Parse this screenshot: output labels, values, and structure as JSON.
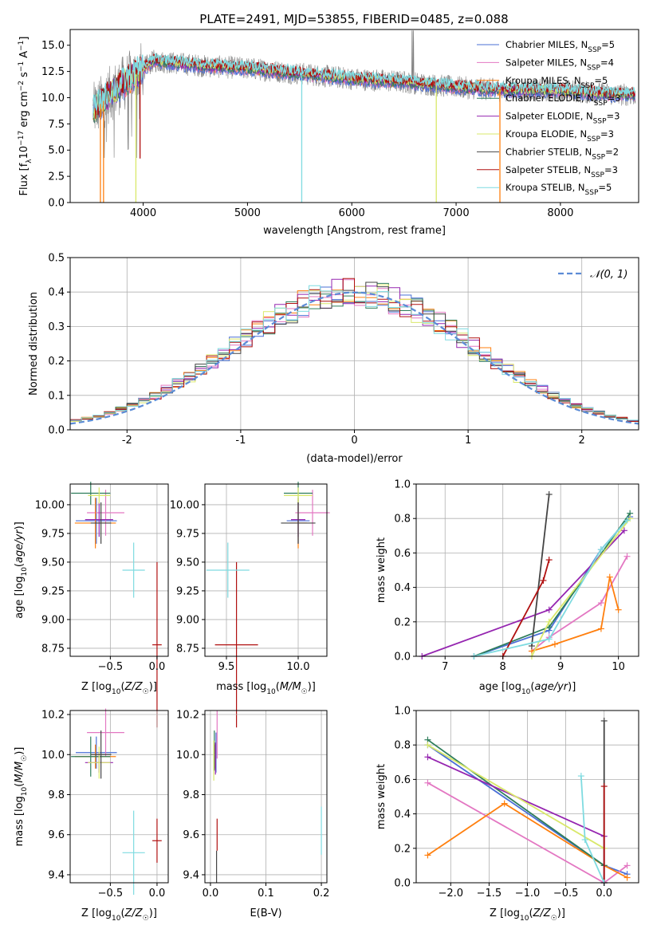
{
  "figure_title": "PLATE=2491, MJD=53855, FIBERID=0485, z=0.088",
  "legend_labels": [
    {
      "text": "Chabrier MILES, N",
      "sub": "SSP",
      "tail": "=5"
    },
    {
      "text": "Salpeter MILES, N",
      "sub": "SSP",
      "tail": "=4"
    },
    {
      "text": "Kroupa MILES, N",
      "sub": "SSP",
      "tail": "=5"
    },
    {
      "text": "Chabrier ELODIE, N",
      "sub": "SSP",
      "tail": "=3"
    },
    {
      "text": "Salpeter ELODIE, N",
      "sub": "SSP",
      "tail": "=3"
    },
    {
      "text": "Kroupa ELODIE, N",
      "sub": "SSP",
      "tail": "=3"
    },
    {
      "text": "Chabrier STELIB, N",
      "sub": "SSP",
      "tail": "=2"
    },
    {
      "text": "Salpeter STELIB, N",
      "sub": "SSP",
      "tail": "=3"
    },
    {
      "text": "Kroupa STELIB, N",
      "sub": "SSP",
      "tail": "=5"
    }
  ],
  "colors": [
    "#4a6fd6",
    "#e377c2",
    "#ff7f0e",
    "#2e7d5b",
    "#9525b0",
    "#d9e86a",
    "#444444",
    "#b01010",
    "#7fdbe0"
  ],
  "chart_data": [
    {
      "id": "spectrum",
      "type": "line",
      "title": "PLATE=2491, MJD=53855, FIBERID=0485, z=0.088",
      "xlabel": "wavelength [Angstrom, rest frame]",
      "ylabel": "Flux [fλ10⁻¹⁷ erg cm⁻² s⁻¹ A⁻¹]",
      "xlim": [
        3300,
        8750
      ],
      "ylim": [
        0,
        16.5
      ],
      "xticks": [
        4000,
        5000,
        6000,
        7000,
        8000
      ],
      "yticks": [
        0.0,
        2.5,
        5.0,
        7.5,
        10.0,
        12.5,
        15.0
      ],
      "ytick_labels": [
        "0.0",
        "2.5",
        "5.0",
        "7.5",
        "10.0",
        "12.5",
        "15.0"
      ],
      "model_continuum": {
        "x": [
          3500,
          3700,
          3900,
          4100,
          4300,
          4600,
          5000,
          5500,
          6000,
          6500,
          7000,
          7500,
          8000,
          8500
        ],
        "y": [
          8.5,
          10.5,
          12.0,
          13.5,
          13.3,
          13.0,
          12.8,
          12.3,
          11.8,
          11.5,
          11.0,
          10.7,
          10.7,
          10.3
        ]
      },
      "absorption_features": [
        {
          "x": 3590,
          "y": 0.0
        },
        {
          "x": 3620,
          "y": 0.0
        },
        {
          "x": 3930,
          "y": 0.0
        },
        {
          "x": 3970,
          "y": 4.2
        },
        {
          "x": 5520,
          "y": 0.0
        },
        {
          "x": 6810,
          "y": 0.0
        },
        {
          "x": 7420,
          "y": 0.0
        }
      ],
      "legend": "top-right",
      "grid": false
    },
    {
      "id": "residuals",
      "type": "histogram",
      "xlabel": "(data-model)/error",
      "ylabel": "Normed distribution",
      "xlim": [
        -2.5,
        2.5
      ],
      "ylim": [
        0,
        0.5
      ],
      "xticks": [
        -2,
        -1,
        0,
        1,
        2
      ],
      "yticks": [
        0.0,
        0.1,
        0.2,
        0.3,
        0.4,
        0.5
      ],
      "ytick_labels": [
        "0.0",
        "0.1",
        "0.2",
        "0.3",
        "0.4",
        "0.5"
      ],
      "bin_width": 0.1,
      "reference_label": "𝒩(0, 1)",
      "legend": "top-right",
      "grid": true
    },
    {
      "id": "age_vs_Z",
      "type": "errorbar",
      "xlabel": "Z [log10(Z/Z☉)]",
      "ylabel": "age [log10(age/yr)]",
      "xlim": [
        -0.93,
        0.12
      ],
      "ylim": [
        8.68,
        10.18
      ],
      "xticks": [
        -0.5,
        0.0
      ],
      "xtick_labels": [
        "−0.5",
        "0.0"
      ],
      "yticks": [
        8.75,
        9.0,
        9.25,
        9.5,
        9.75,
        10.0
      ],
      "ytick_labels": [
        "8.75",
        "9.00",
        "9.25",
        "9.50",
        "9.75",
        "10.00"
      ],
      "points": [
        {
          "c": 0,
          "x": -0.65,
          "y": 9.86,
          "xe": 0.22,
          "ye": 0.2
        },
        {
          "c": 1,
          "x": -0.55,
          "y": 9.93,
          "xe": 0.2,
          "ye": 0.2
        },
        {
          "c": 2,
          "x": -0.66,
          "y": 9.84,
          "xe": 0.22,
          "ye": 0.22
        },
        {
          "c": 3,
          "x": -0.71,
          "y": 10.1,
          "xe": 0.21,
          "ye": 0.1
        },
        {
          "c": 4,
          "x": -0.62,
          "y": 9.87,
          "xe": 0.15,
          "ye": 0.15
        },
        {
          "c": 5,
          "x": -0.62,
          "y": 10.08,
          "xe": 0.12,
          "ye": 0.07
        },
        {
          "c": 6,
          "x": -0.6,
          "y": 9.84,
          "xe": 0.11,
          "ye": 0.18
        },
        {
          "c": 7,
          "x": 0.0,
          "y": 8.78,
          "xe": 0.05,
          "ye": 0.72
        },
        {
          "c": 8,
          "x": -0.25,
          "y": 9.43,
          "xe": 0.12,
          "ye": 0.24
        }
      ],
      "grid": true
    },
    {
      "id": "age_vs_mass",
      "type": "errorbar",
      "xlabel": "mass [log10(M/M☉)]",
      "ylabel": "",
      "xlim": [
        9.35,
        10.2
      ],
      "ylim": [
        8.68,
        10.18
      ],
      "xticks": [
        9.5,
        10.0
      ],
      "xtick_labels": [
        "9.5",
        "10.0"
      ],
      "yticks": [
        8.75,
        9.0,
        9.25,
        9.5,
        9.75,
        10.0
      ],
      "ytick_labels": [
        "8.75",
        "9.00",
        "9.25",
        "9.50",
        "9.75",
        "10.00"
      ],
      "points": [
        {
          "c": 0,
          "x": 10.0,
          "y": 9.86,
          "xe": 0.08,
          "ye": 0.2
        },
        {
          "c": 1,
          "x": 10.1,
          "y": 9.93,
          "xe": 0.12,
          "ye": 0.2
        },
        {
          "c": 2,
          "x": 10.0,
          "y": 9.84,
          "xe": 0.06,
          "ye": 0.22
        },
        {
          "c": 3,
          "x": 10.0,
          "y": 10.1,
          "xe": 0.1,
          "ye": 0.1
        },
        {
          "c": 4,
          "x": 10.0,
          "y": 9.87,
          "xe": 0.05,
          "ye": 0.15
        },
        {
          "c": 5,
          "x": 10.0,
          "y": 10.08,
          "xe": 0.1,
          "ye": 0.07
        },
        {
          "c": 6,
          "x": 10.0,
          "y": 9.84,
          "xe": 0.12,
          "ye": 0.18
        },
        {
          "c": 7,
          "x": 9.57,
          "y": 8.78,
          "xe": 0.15,
          "ye": 0.72
        },
        {
          "c": 8,
          "x": 9.51,
          "y": 9.43,
          "xe": 0.15,
          "ye": 0.24
        }
      ],
      "grid": true
    },
    {
      "id": "mass_weight_vs_age",
      "type": "line",
      "xlabel": "age [log10(age/yr)]",
      "ylabel": "mass weight",
      "xlim": [
        6.5,
        10.35
      ],
      "ylim": [
        0,
        1.0
      ],
      "xticks": [
        7,
        8,
        9,
        10
      ],
      "yticks": [
        0.0,
        0.2,
        0.4,
        0.6,
        0.8,
        1.0
      ],
      "ytick_labels": [
        "0.0",
        "0.2",
        "0.4",
        "0.6",
        "0.8",
        "1.0"
      ],
      "series": [
        {
          "c": 0,
          "x": [
            7.5,
            8.8,
            9.7,
            10.2
          ],
          "y": [
            0.0,
            0.15,
            0.62,
            0.81
          ]
        },
        {
          "c": 1,
          "x": [
            8.5,
            8.8,
            9.7,
            10.15
          ],
          "y": [
            0.03,
            0.11,
            0.31,
            0.58
          ]
        },
        {
          "c": 2,
          "x": [
            8.5,
            8.9,
            9.7,
            9.85,
            10.0
          ],
          "y": [
            0.03,
            0.07,
            0.16,
            0.46,
            0.27
          ]
        },
        {
          "c": 3,
          "x": [
            7.5,
            8.8,
            10.2
          ],
          "y": [
            0.0,
            0.17,
            0.83
          ]
        },
        {
          "c": 4,
          "x": [
            6.6,
            8.8,
            10.1
          ],
          "y": [
            0.0,
            0.27,
            0.73
          ]
        },
        {
          "c": 5,
          "x": [
            8.5,
            8.8,
            10.2
          ],
          "y": [
            0.0,
            0.2,
            0.8
          ]
        },
        {
          "c": 6,
          "x": [
            8.5,
            8.8
          ],
          "y": [
            0.06,
            0.94
          ]
        },
        {
          "c": 7,
          "x": [
            8.0,
            8.7,
            8.8
          ],
          "y": [
            0.0,
            0.44,
            0.56
          ]
        },
        {
          "c": 8,
          "x": [
            7.5,
            8.8,
            9.7,
            10.15
          ],
          "y": [
            0.0,
            0.1,
            0.62,
            0.79
          ]
        }
      ],
      "grid": true
    },
    {
      "id": "mass_vs_Z",
      "type": "errorbar",
      "xlabel": "Z [log10(Z/Z☉)]",
      "ylabel": "mass [log10(M/M☉)]",
      "xlim": [
        -0.93,
        0.12
      ],
      "ylim": [
        9.36,
        10.22
      ],
      "xticks": [
        -0.5,
        0.0
      ],
      "xtick_labels": [
        "−0.5",
        "0.0"
      ],
      "yticks": [
        9.4,
        9.6,
        9.8,
        10.0,
        10.2
      ],
      "ytick_labels": [
        "9.4",
        "9.6",
        "9.8",
        "10.0",
        "10.2"
      ],
      "points": [
        {
          "c": 0,
          "x": -0.65,
          "y": 10.01,
          "xe": 0.22,
          "ye": 0.08
        },
        {
          "c": 1,
          "x": -0.55,
          "y": 10.11,
          "xe": 0.2,
          "ye": 0.12
        },
        {
          "c": 2,
          "x": -0.66,
          "y": 9.99,
          "xe": 0.22,
          "ye": 0.06
        },
        {
          "c": 3,
          "x": -0.71,
          "y": 9.99,
          "xe": 0.21,
          "ye": 0.1
        },
        {
          "c": 4,
          "x": -0.62,
          "y": 9.96,
          "xe": 0.15,
          "ye": 0.05
        },
        {
          "c": 5,
          "x": -0.62,
          "y": 9.96,
          "xe": 0.12,
          "ye": 0.08
        },
        {
          "c": 6,
          "x": -0.6,
          "y": 10.0,
          "xe": 0.11,
          "ye": 0.12
        },
        {
          "c": 7,
          "x": 0.0,
          "y": 9.57,
          "xe": 0.05,
          "ye": 0.11
        },
        {
          "c": 8,
          "x": -0.25,
          "y": 9.51,
          "xe": 0.12,
          "ye": 0.21
        }
      ],
      "grid": true
    },
    {
      "id": "mass_vs_EBV",
      "type": "errorbar",
      "xlabel": "E(B-V)",
      "ylabel": "",
      "xlim": [
        -0.01,
        0.21
      ],
      "ylim": [
        9.36,
        10.22
      ],
      "xticks": [
        0.0,
        0.1,
        0.2
      ],
      "xtick_labels": [
        "0.0",
        "0.1",
        "0.2"
      ],
      "yticks": [
        9.4,
        9.6,
        9.8,
        10.0,
        10.2
      ],
      "ytick_labels": [
        "9.4",
        "9.6",
        "9.8",
        "10.0",
        "10.2"
      ],
      "points": [
        {
          "c": 0,
          "x": 0.01,
          "y": 10.01,
          "xe": 0.0,
          "ye": 0.1
        },
        {
          "c": 1,
          "x": 0.012,
          "y": 10.1,
          "xe": 0.0,
          "ye": 0.12
        },
        {
          "c": 2,
          "x": 0.008,
          "y": 9.99,
          "xe": 0.0,
          "ye": 0.06
        },
        {
          "c": 3,
          "x": 0.007,
          "y": 10.02,
          "xe": 0.0,
          "ye": 0.1
        },
        {
          "c": 4,
          "x": 0.009,
          "y": 9.98,
          "xe": 0.0,
          "ye": 0.08
        },
        {
          "c": 5,
          "x": 0.006,
          "y": 9.97,
          "xe": 0.0,
          "ye": 0.1
        },
        {
          "c": 6,
          "x": 0.011,
          "y": 9.44,
          "xe": 0.0,
          "ye": 0.08
        },
        {
          "c": 7,
          "x": 0.012,
          "y": 9.6,
          "xe": 0.0,
          "ye": 0.08
        },
        {
          "c": 8,
          "x": 0.2,
          "y": 9.62,
          "xe": 0.0,
          "ye": 0.12
        }
      ],
      "grid": true
    },
    {
      "id": "mass_weight_vs_Z",
      "type": "line",
      "xlabel": "Z [log10(Z/Z☉)]",
      "ylabel": "mass weight",
      "xlim": [
        -2.45,
        0.45
      ],
      "ylim": [
        0,
        1.0
      ],
      "xticks": [
        -2.0,
        -1.5,
        -1.0,
        -0.5,
        0.0
      ],
      "xtick_labels": [
        "−2.0",
        "−1.5",
        "−1.0",
        "−0.5",
        "0.0"
      ],
      "yticks": [
        0.0,
        0.2,
        0.4,
        0.6,
        0.8,
        1.0
      ],
      "ytick_labels": [
        "0.0",
        "0.2",
        "0.4",
        "0.6",
        "0.8",
        "1.0"
      ],
      "series": [
        {
          "c": 0,
          "x": [
            -2.3,
            0.0,
            0.3
          ],
          "y": [
            0.8,
            0.1,
            0.05
          ]
        },
        {
          "c": 1,
          "x": [
            -2.3,
            0.0,
            0.3
          ],
          "y": [
            0.58,
            0.0,
            0.1
          ]
        },
        {
          "c": 2,
          "x": [
            -2.3,
            -1.3,
            0.0,
            0.3
          ],
          "y": [
            0.16,
            0.46,
            0.1,
            0.03
          ]
        },
        {
          "c": 3,
          "x": [
            -2.3,
            0.0
          ],
          "y": [
            0.83,
            0.1
          ]
        },
        {
          "c": 4,
          "x": [
            -2.3,
            0.0,
            0.0
          ],
          "y": [
            0.73,
            0.27,
            0.0
          ]
        },
        {
          "c": 5,
          "x": [
            -2.3,
            0.0
          ],
          "y": [
            0.8,
            0.2
          ]
        },
        {
          "c": 6,
          "x": [
            0.0,
            0.0
          ],
          "y": [
            0.94,
            0.0
          ]
        },
        {
          "c": 7,
          "x": [
            0.0,
            0.0
          ],
          "y": [
            0.56,
            0.0
          ]
        },
        {
          "c": 8,
          "x": [
            -0.3,
            -0.25,
            0.0
          ],
          "y": [
            0.62,
            0.25,
            0.0
          ]
        }
      ],
      "grid": true
    }
  ]
}
